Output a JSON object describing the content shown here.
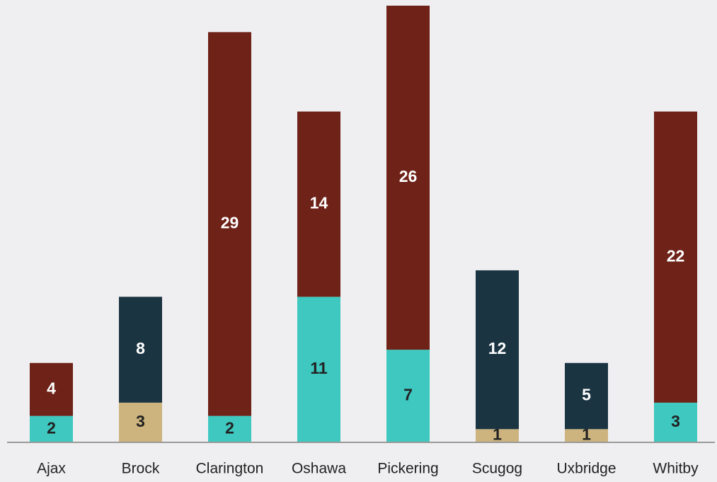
{
  "chart_data": {
    "type": "stacked_bar",
    "categories": [
      "Ajax",
      "Brock",
      "Clarington",
      "Oshawa",
      "Pickering",
      "Scugog",
      "Uxbridge",
      "Whitby"
    ],
    "series": [
      {
        "color": "#3ec8c0",
        "values": [
          2,
          null,
          2,
          11,
          7,
          null,
          null,
          3
        ]
      },
      {
        "color": "#cdb47e",
        "values": [
          null,
          3,
          null,
          null,
          null,
          1,
          1,
          null
        ]
      },
      {
        "color": "#1b3442",
        "values": [
          null,
          8,
          null,
          null,
          null,
          12,
          5,
          null
        ]
      },
      {
        "color": "#6e2218",
        "values": [
          4,
          null,
          29,
          14,
          26,
          null,
          null,
          22
        ]
      }
    ],
    "ylim": [
      0,
      33
    ]
  }
}
